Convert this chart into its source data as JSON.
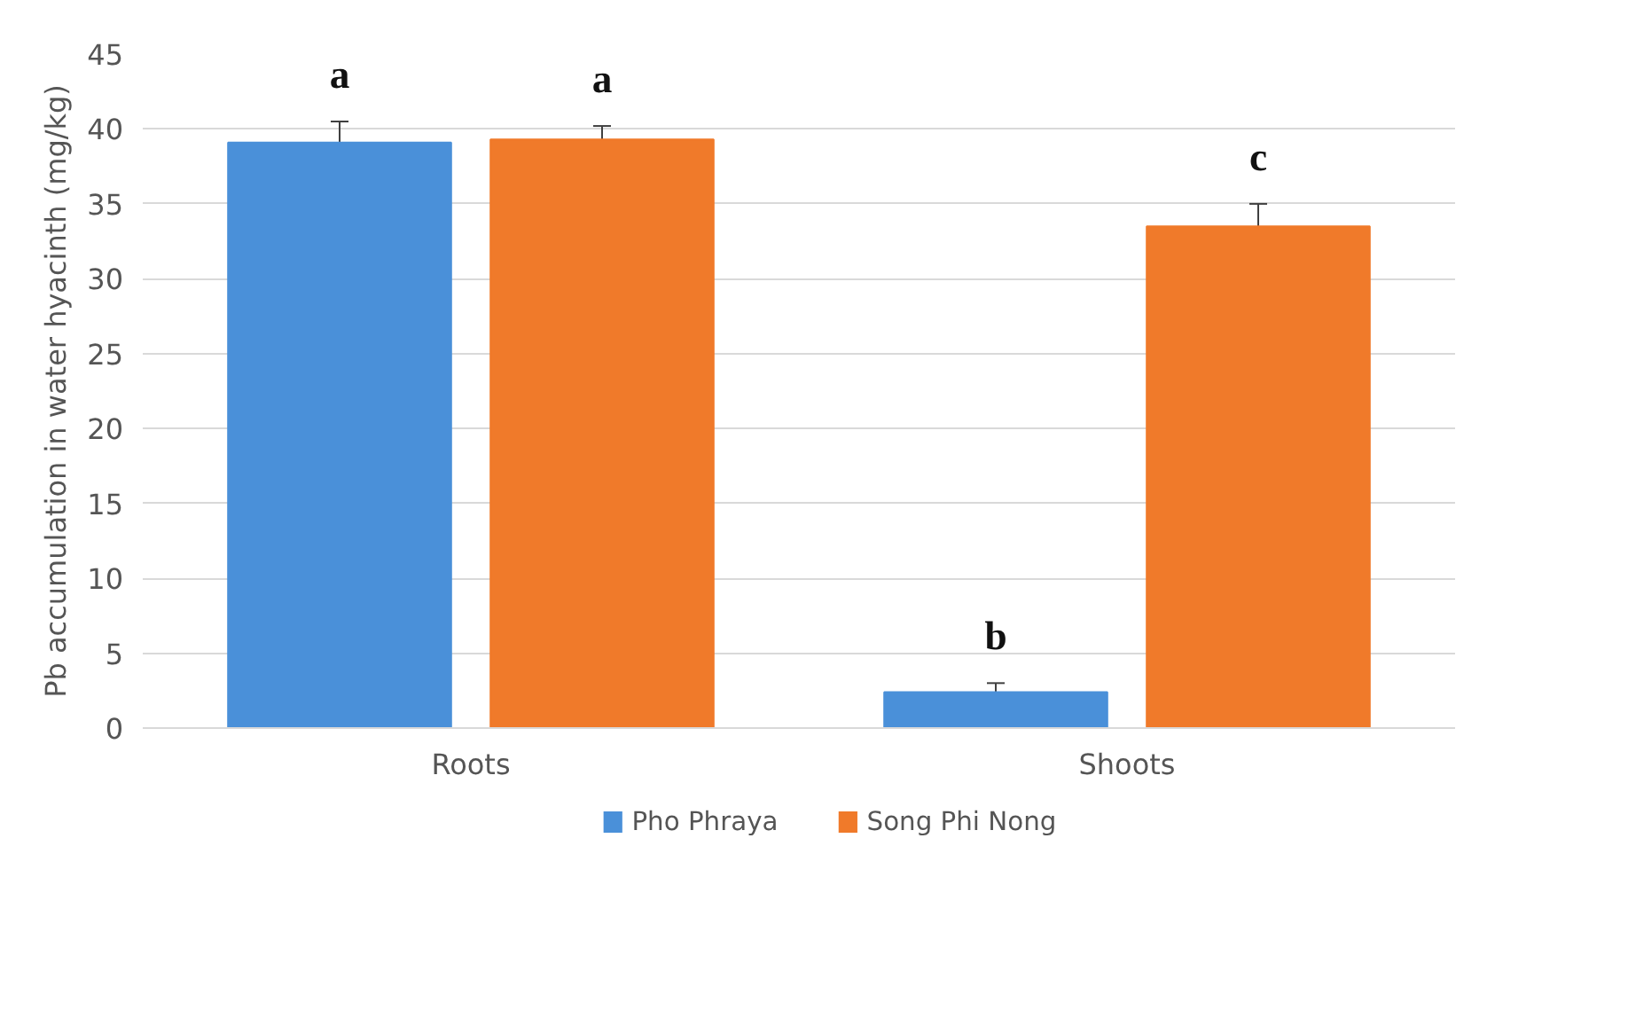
{
  "chart_data": {
    "type": "bar",
    "ylabel": "Pb accumulation in water hyacinth (mg/kg)",
    "categories": [
      "Roots",
      "Shoots"
    ],
    "series": [
      {
        "name": "Pho Phraya",
        "color": "#4a90d9",
        "values": [
          39.1,
          2.4
        ],
        "errors": [
          1.4,
          0.6
        ],
        "value_labels": [
          "a",
          "b"
        ]
      },
      {
        "name": "Song Phi Nong",
        "color": "#f07a2a",
        "values": [
          39.3,
          33.5
        ],
        "errors": [
          0.9,
          1.5
        ],
        "value_labels": [
          "a",
          "c"
        ]
      }
    ],
    "ylim": [
      0,
      45
    ],
    "yticks": [
      0,
      5,
      10,
      15,
      20,
      25,
      30,
      35,
      40,
      45
    ],
    "grid": "y",
    "legend": "bottom"
  }
}
